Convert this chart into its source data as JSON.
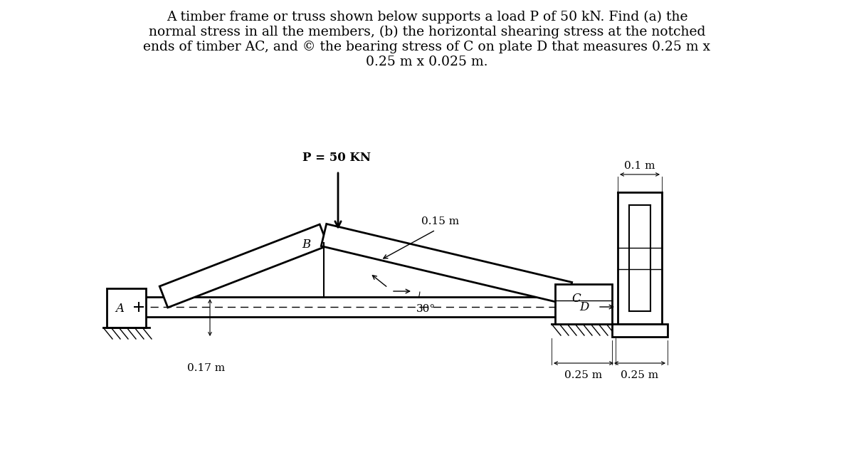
{
  "title_text": "A timber frame or truss shown below supports a load P of 50 kN. Find (a) the\nnormal stress in all the members, (b) the horizontal shearing stress at the notched\nends of timber AC, and © the bearing stress of C on plate D that measures 0.25 m x\n0.25 m x 0.025 m.",
  "title_fontsize": 13.5,
  "bg_color": "#ffffff",
  "load_label": "P = 50 KN",
  "dim_017": "0.17 m",
  "dim_015": "0.15 m",
  "dim_025a": "0.25 m",
  "dim_025b": "0.25 m",
  "dim_01": "0.1 m",
  "angle_label": "30°",
  "label_A": "A",
  "label_B": "B",
  "label_C": "C",
  "label_D": "D",
  "line_color": "#000000",
  "lw": 1.5,
  "lw_thick": 2.0
}
